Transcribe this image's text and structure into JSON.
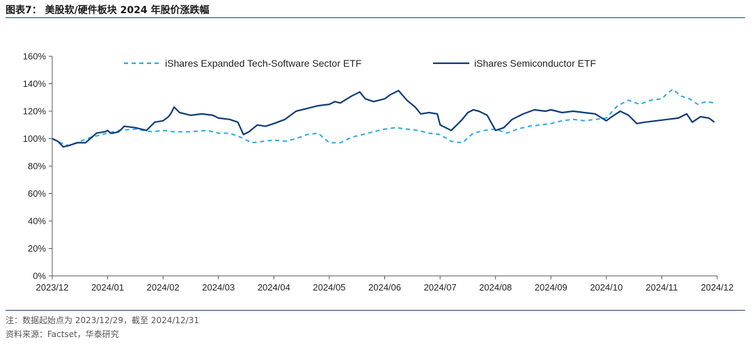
{
  "figure": {
    "title": "图表7：  美股软/硬件板块 2024 年股价涨跌幅",
    "note": "注：数据起始点为 2023/12/29，截至 2024/12/31",
    "source": "资料来源：Factset，华泰研究"
  },
  "chart_data": {
    "type": "line",
    "title": "美股软/硬件板块 2024 年股价涨跌幅",
    "xlabel": "",
    "ylabel": "",
    "ylim": [
      0,
      160
    ],
    "y_ticks": [
      "0%",
      "20%",
      "40%",
      "60%",
      "80%",
      "100%",
      "120%",
      "140%",
      "160%"
    ],
    "y_tick_values": [
      0,
      20,
      40,
      60,
      80,
      100,
      120,
      140,
      160
    ],
    "x_ticks": [
      "2023/12",
      "2024/01",
      "2024/02",
      "2024/03",
      "2024/04",
      "2024/05",
      "2024/06",
      "2024/07",
      "2024/08",
      "2024/09",
      "2024/10",
      "2024/11",
      "2024/12"
    ],
    "xlim": [
      0,
      12
    ],
    "legend_position": "top",
    "series": [
      {
        "name": "iShares Expanded Tech-Software Sector ETF",
        "style": "dashed",
        "color": "#29a8e0",
        "x": [
          0,
          0.15,
          0.3,
          0.5,
          0.7,
          0.9,
          1.0,
          1.2,
          1.5,
          1.8,
          2.0,
          2.2,
          2.5,
          2.8,
          3.0,
          3.2,
          3.4,
          3.6,
          3.8,
          4.0,
          4.2,
          4.4,
          4.6,
          4.8,
          5.0,
          5.2,
          5.4,
          5.6,
          5.8,
          6.0,
          6.2,
          6.4,
          6.6,
          6.8,
          7.0,
          7.2,
          7.4,
          7.6,
          7.8,
          8.0,
          8.2,
          8.4,
          8.6,
          8.8,
          9.0,
          9.2,
          9.4,
          9.6,
          9.8,
          10.0,
          10.2,
          10.4,
          10.6,
          10.8,
          11.0,
          11.1,
          11.2,
          11.35,
          11.5,
          11.65,
          11.8,
          11.95
        ],
        "values": [
          100,
          97,
          95,
          98,
          101,
          103,
          104,
          106,
          107,
          105,
          106,
          105,
          105,
          106,
          104,
          104,
          101,
          97,
          98,
          99,
          98,
          100,
          103,
          104,
          97,
          97,
          101,
          103,
          105,
          107,
          108,
          107,
          106,
          104,
          103,
          98,
          97,
          104,
          106,
          107,
          104,
          107,
          109,
          110,
          111,
          113,
          114,
          113,
          114,
          115,
          124,
          128,
          125,
          128,
          129,
          133,
          136,
          131,
          129,
          125,
          127,
          126
        ]
      },
      {
        "name": "iShares Semiconductor ETF",
        "style": "solid",
        "color": "#0d3c78",
        "x": [
          0,
          0.1,
          0.2,
          0.3,
          0.45,
          0.6,
          0.8,
          0.95,
          1.0,
          1.05,
          1.1,
          1.2,
          1.3,
          1.5,
          1.7,
          1.85,
          2.0,
          2.1,
          2.15,
          2.2,
          2.3,
          2.4,
          2.5,
          2.7,
          2.9,
          3.0,
          3.2,
          3.35,
          3.45,
          3.55,
          3.7,
          3.85,
          4.0,
          4.2,
          4.4,
          4.6,
          4.8,
          5.0,
          5.1,
          5.2,
          5.4,
          5.55,
          5.65,
          5.8,
          6.0,
          6.1,
          6.25,
          6.4,
          6.55,
          6.65,
          6.8,
          6.95,
          7.0,
          7.05,
          7.1,
          7.2,
          7.3,
          7.4,
          7.5,
          7.6,
          7.7,
          7.85,
          8.0,
          8.15,
          8.3,
          8.5,
          8.7,
          8.9,
          9.0,
          9.2,
          9.4,
          9.6,
          9.8,
          10.0,
          10.1,
          10.25,
          10.4,
          10.55,
          10.7,
          10.9,
          11.1,
          11.3,
          11.45,
          11.55,
          11.7,
          11.85,
          11.95
        ],
        "values": [
          100,
          98,
          94,
          95,
          97,
          97,
          104,
          105,
          106,
          104,
          104,
          105,
          109,
          108,
          106,
          112,
          113,
          116,
          119,
          123,
          119,
          118,
          117,
          118,
          117,
          115,
          114,
          112,
          103,
          105,
          110,
          109,
          111,
          114,
          120,
          122,
          124,
          125,
          127,
          126,
          131,
          134,
          129,
          127,
          129,
          132,
          135,
          128,
          123,
          118,
          119,
          118,
          110,
          109,
          108,
          106,
          110,
          114,
          119,
          121,
          120,
          117,
          106,
          108,
          114,
          118,
          121,
          120,
          121,
          119,
          120,
          119,
          118,
          113,
          116,
          120,
          117,
          111,
          112,
          113,
          114,
          115,
          118,
          112,
          116,
          115,
          112
        ]
      }
    ]
  }
}
